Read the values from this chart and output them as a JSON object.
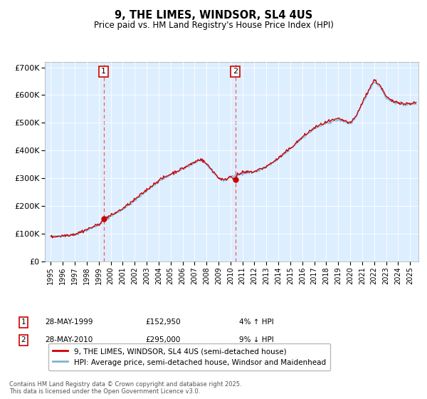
{
  "title": "9, THE LIMES, WINDSOR, SL4 4US",
  "subtitle": "Price paid vs. HM Land Registry's House Price Index (HPI)",
  "legend_line1": "9, THE LIMES, WINDSOR, SL4 4US (semi-detached house)",
  "legend_line2": "HPI: Average price, semi-detached house, Windsor and Maidenhead",
  "footer": "Contains HM Land Registry data © Crown copyright and database right 2025.\nThis data is licensed under the Open Government Licence v3.0.",
  "sale1_date": 1999.41,
  "sale1_price": 152950,
  "sale1_label": "1",
  "sale1_text": "28-MAY-1999",
  "sale1_price_str": "£152,950",
  "sale1_pct": "4% ↑ HPI",
  "sale2_date": 2010.41,
  "sale2_price": 295000,
  "sale2_label": "2",
  "sale2_text": "28-MAY-2010",
  "sale2_price_str": "£295,000",
  "sale2_pct": "9% ↓ HPI",
  "ylim": [
    0,
    720000
  ],
  "xlim": [
    1994.5,
    2025.7
  ],
  "hpi_color": "#7ab4d8",
  "price_color": "#cc0000",
  "vline_color": "#ff5555",
  "bg_color": "#ddeeff",
  "yticks": [
    0,
    100000,
    200000,
    300000,
    400000,
    500000,
    600000,
    700000
  ],
  "ytick_labels": [
    "£0",
    "£100K",
    "£200K",
    "£300K",
    "£400K",
    "£500K",
    "£600K",
    "£700K"
  ]
}
